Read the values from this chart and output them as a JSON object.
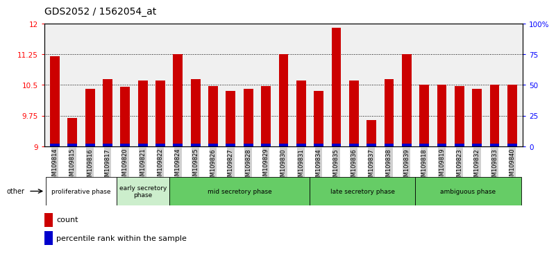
{
  "title": "GDS2052 / 1562054_at",
  "samples": [
    "GSM109814",
    "GSM109815",
    "GSM109816",
    "GSM109817",
    "GSM109820",
    "GSM109821",
    "GSM109822",
    "GSM109824",
    "GSM109825",
    "GSM109826",
    "GSM109827",
    "GSM109828",
    "GSM109829",
    "GSM109830",
    "GSM109831",
    "GSM109834",
    "GSM109835",
    "GSM109836",
    "GSM109837",
    "GSM109838",
    "GSM109839",
    "GSM109818",
    "GSM109819",
    "GSM109823",
    "GSM109832",
    "GSM109833",
    "GSM109840"
  ],
  "count_values": [
    11.2,
    9.7,
    10.4,
    10.65,
    10.45,
    10.6,
    10.6,
    11.25,
    10.65,
    10.47,
    10.35,
    10.4,
    10.47,
    11.25,
    10.6,
    10.35,
    11.9,
    10.6,
    9.65,
    10.65,
    11.25,
    10.5,
    10.5,
    10.47,
    10.4,
    10.5,
    10.5
  ],
  "percentile_heights": [
    0.06,
    0.06,
    0.06,
    0.06,
    0.06,
    0.06,
    0.06,
    0.06,
    0.06,
    0.06,
    0.06,
    0.06,
    0.06,
    0.06,
    0.06,
    0.06,
    0.06,
    0.06,
    0.06,
    0.06,
    0.06,
    0.06,
    0.06,
    0.06,
    0.06,
    0.06,
    0.06
  ],
  "ylim_left": [
    9,
    12
  ],
  "ylim_right": [
    0,
    100
  ],
  "yticks_left": [
    9,
    9.75,
    10.5,
    11.25,
    12
  ],
  "yticks_right": [
    0,
    25,
    50,
    75,
    100
  ],
  "ytick_labels_left": [
    "9",
    "9.75",
    "10.5",
    "11.25",
    "12"
  ],
  "ytick_labels_right": [
    "0",
    "25",
    "50",
    "75",
    "100%"
  ],
  "bar_color": "#cc0000",
  "percentile_color": "#0000cc",
  "background_plot": "#f0f0f0",
  "phases": [
    {
      "label": "proliferative phase",
      "start": 0,
      "end": 4,
      "color": "#ffffff"
    },
    {
      "label": "early secretory\nphase",
      "start": 4,
      "end": 7,
      "color": "#cceecc"
    },
    {
      "label": "mid secretory phase",
      "start": 7,
      "end": 15,
      "color": "#66cc66"
    },
    {
      "label": "late secretory phase",
      "start": 15,
      "end": 21,
      "color": "#66cc66"
    },
    {
      "label": "ambiguous phase",
      "start": 21,
      "end": 27,
      "color": "#66cc66"
    }
  ],
  "legend_count_color": "#cc0000",
  "legend_percentile_color": "#0000cc",
  "title_fontsize": 10,
  "bar_width": 0.55
}
